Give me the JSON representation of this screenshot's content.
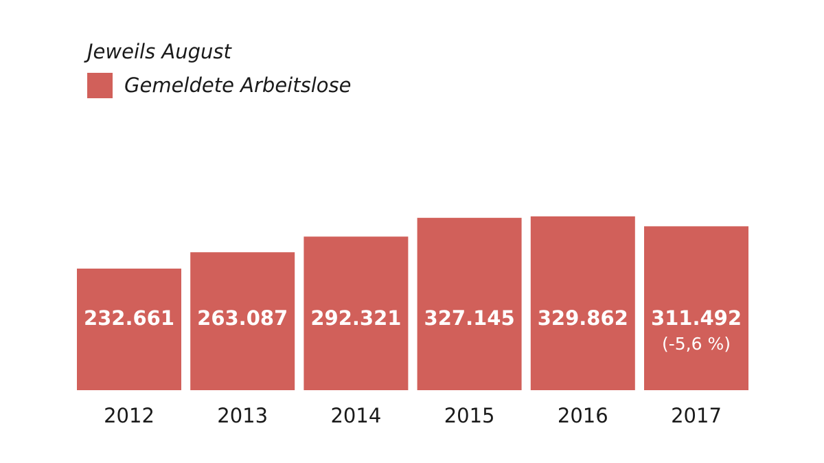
{
  "chart_data": {
    "type": "bar",
    "title": "",
    "subtitle": "Jeweils August",
    "xlabel": "",
    "ylabel": "",
    "categories": [
      "2012",
      "2013",
      "2014",
      "2015",
      "2016",
      "2017"
    ],
    "series": [
      {
        "name": "Gemeldete Arbeitslose",
        "values": [
          232661,
          263087,
          292321,
          327145,
          329862,
          311492
        ],
        "value_labels": [
          "232.661",
          "263.087",
          "292.321",
          "327.145",
          "329.862",
          "311.492"
        ],
        "notes": [
          "",
          "",
          "",
          "",
          "",
          "(-5,6 %)"
        ]
      }
    ],
    "legend": {
      "position": "top-left",
      "entries": [
        "Gemeldete Arbeitslose"
      ]
    },
    "grid": false,
    "y_axis_visible": false,
    "colors": {
      "bar": "#d1605a",
      "bar_text": "#ffffff",
      "axis_text": "#1a1a1a"
    }
  }
}
